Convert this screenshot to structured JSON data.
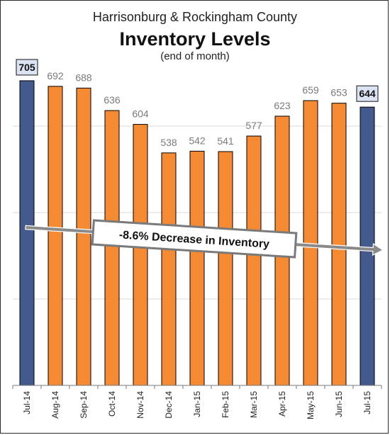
{
  "chart_data": {
    "type": "bar",
    "title": "Inventory Levels",
    "supertitle": "Harrisonburg & Rockingham County",
    "subtitle": "(end of month)",
    "xlabel": "",
    "ylabel": "",
    "categories": [
      "Jul-14",
      "Aug-14",
      "Sep-14",
      "Oct-14",
      "Nov-14",
      "Dec-14",
      "Jan-15",
      "Feb-15",
      "Mar-15",
      "Apr-15",
      "May-15",
      "Jun-15",
      "Jul-15"
    ],
    "values": [
      705,
      692,
      688,
      636,
      604,
      538,
      542,
      541,
      577,
      623,
      659,
      653,
      644
    ],
    "highlighted": [
      true,
      false,
      false,
      false,
      false,
      false,
      false,
      false,
      false,
      false,
      false,
      false,
      true
    ],
    "ylim": [
      0,
      800
    ],
    "grid": true,
    "annotation": "-8.6% Decrease in Inventory",
    "colors": {
      "regular": "#F58A34",
      "highlight": "#455A8C",
      "grid": "#d9d9d9",
      "arrow": "#8a8a8a",
      "label_box": "#dbe3f2"
    }
  }
}
